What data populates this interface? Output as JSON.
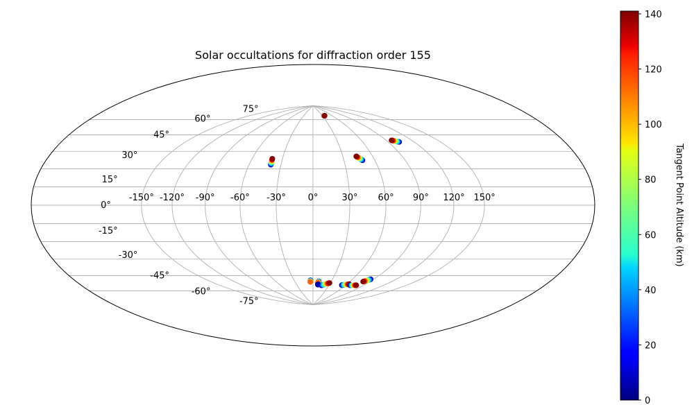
{
  "chart_data": {
    "type": "scatter",
    "projection": "hammer",
    "title": "Solar occultations for diffraction order 155",
    "grid": true,
    "longitude_ticks": [
      "-150°",
      "-120°",
      "-90°",
      "-60°",
      "-30°",
      "0°",
      "30°",
      "60°",
      "90°",
      "120°",
      "150°"
    ],
    "latitude_ticks": [
      "-75°",
      "-60°",
      "-45°",
      "-30°",
      "-15°",
      "0°",
      "15°",
      "30°",
      "45°",
      "60°",
      "75°"
    ],
    "colorbar": {
      "label": "Tangent Point Altitude (km)",
      "colormap": "jet",
      "range": [
        0,
        141
      ],
      "ticks": [
        "0",
        "20",
        "40",
        "60",
        "80",
        "100",
        "120",
        "140"
      ]
    },
    "tracks": [
      {
        "lon_start": -39.5,
        "lat_start": 33.0,
        "lon_end": -40.0,
        "lat_end": 38.0,
        "alt_start": 5,
        "alt_end": 140
      },
      {
        "lon_start": 35.0,
        "lat_start": 78.5,
        "lon_end": 37.5,
        "lat_end": 78.6,
        "alt_start": 5,
        "alt_end": 140
      },
      {
        "lon_start": 48.0,
        "lat_start": 36.5,
        "lon_end": 43.5,
        "lat_end": 40.0,
        "alt_start": 5,
        "alt_end": 140
      },
      {
        "lon_start": 103.0,
        "lat_start": 49.0,
        "lon_end": 96.5,
        "lat_end": 51.0,
        "alt_start": 5,
        "alt_end": 140
      },
      {
        "lon_start": -4.0,
        "lat_start": -64.5,
        "lon_end": -4.5,
        "lat_end": -66.0,
        "alt_start": 5,
        "alt_end": 110
      },
      {
        "lon_start": 9.5,
        "lat_start": -65.5,
        "lon_end": 8.5,
        "lat_end": -66.7,
        "alt_start": 5,
        "alt_end": 110
      },
      {
        "lon_start": 9.0,
        "lat_start": -68.5,
        "lon_end": 9.0,
        "lat_end": -68.5,
        "alt_start": 5,
        "alt_end": 5
      },
      {
        "lon_start": 16.0,
        "lat_start": -69.3,
        "lon_end": 28.5,
        "lat_end": -66.7,
        "alt_start": 5,
        "alt_end": 140
      },
      {
        "lon_start": 53.0,
        "lat_start": -68.0,
        "lon_end": 64.0,
        "lat_end": -66.5,
        "alt_start": 5,
        "alt_end": 140
      },
      {
        "lon_start": 68.0,
        "lat_start": -67.5,
        "lon_end": 78.0,
        "lat_end": -66.8,
        "alt_start": 5,
        "alt_end": 140
      },
      {
        "lon_start": 86.0,
        "lat_start": -60.3,
        "lon_end": 80.0,
        "lat_end": -63.0,
        "alt_start": 5,
        "alt_end": 140
      }
    ]
  }
}
